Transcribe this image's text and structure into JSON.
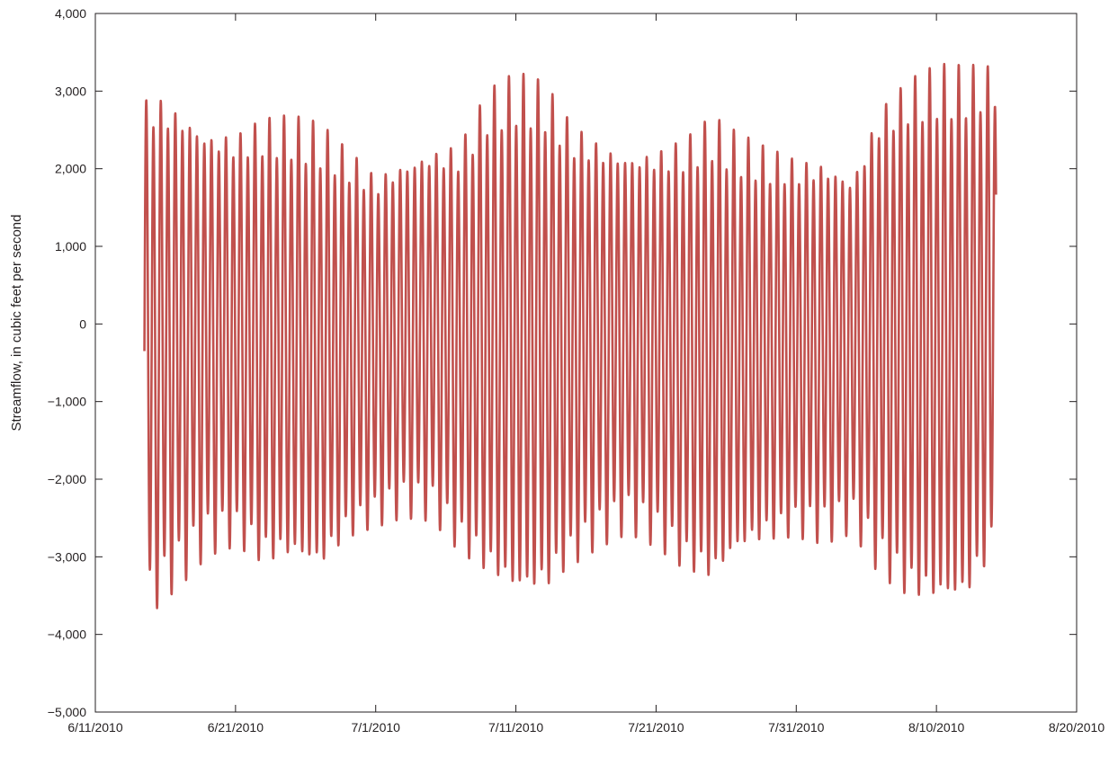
{
  "chart_data": {
    "type": "line",
    "title": "",
    "xlabel": "",
    "ylabel": "Streamflow, in cubic feet per second",
    "x_tick_labels": [
      "6/11/2010",
      "6/21/2010",
      "7/1/2010",
      "7/11/2010",
      "7/21/2010",
      "7/31/2010",
      "8/10/2010",
      "8/20/2010"
    ],
    "x_range": [
      "2010-06-11",
      "2010-08-20"
    ],
    "y_tick_labels": [
      "4,000",
      "3,000",
      "2,000",
      "1,000",
      "0",
      "−1,000",
      "−2,000",
      "−3,000",
      "−4,000",
      "−5,000"
    ],
    "ylim": [
      -5000,
      4000
    ],
    "grid": false,
    "legend": "none",
    "series_color": "#c1504d",
    "series": [
      {
        "start": "2010-06-14 12:00",
        "end": "2010-08-14 06:00",
        "tide_period_hours": 12.42,
        "envelope": [
          {
            "date": "2010-06-14",
            "high": 2800,
            "low": -3500
          },
          {
            "date": "2010-06-15",
            "high": 3100,
            "low": -3800
          },
          {
            "date": "2010-06-17",
            "high": 2900,
            "low": -3400
          },
          {
            "date": "2010-06-19",
            "high": 2600,
            "low": -3000
          },
          {
            "date": "2010-06-21",
            "high": 2550,
            "low": -2900
          },
          {
            "date": "2010-06-23",
            "high": 2700,
            "low": -3200
          },
          {
            "date": "2010-06-25",
            "high": 2700,
            "low": -3150
          },
          {
            "date": "2010-06-27",
            "high": 2600,
            "low": -3300
          },
          {
            "date": "2010-06-29",
            "high": 2300,
            "low": -2850
          },
          {
            "date": "2010-07-01",
            "high": 2000,
            "low": -2650
          },
          {
            "date": "2010-07-03",
            "high": 2200,
            "low": -2500
          },
          {
            "date": "2010-07-05",
            "high": 2350,
            "low": -2550
          },
          {
            "date": "2010-07-07",
            "high": 2400,
            "low": -3000
          },
          {
            "date": "2010-07-09",
            "high": 3050,
            "low": -3350
          },
          {
            "date": "2010-07-11",
            "high": 3250,
            "low": -3650
          },
          {
            "date": "2010-07-13",
            "high": 3150,
            "low": -3600
          },
          {
            "date": "2010-07-15",
            "high": 2650,
            "low": -3200
          },
          {
            "date": "2010-07-17",
            "high": 2450,
            "low": -2900
          },
          {
            "date": "2010-07-19",
            "high": 2300,
            "low": -2700
          },
          {
            "date": "2010-07-21",
            "high": 2350,
            "low": -2900
          },
          {
            "date": "2010-07-23",
            "high": 2450,
            "low": -3250
          },
          {
            "date": "2010-07-25",
            "high": 2700,
            "low": -3450
          },
          {
            "date": "2010-07-27",
            "high": 2450,
            "low": -3050
          },
          {
            "date": "2010-07-29",
            "high": 2300,
            "low": -2900
          },
          {
            "date": "2010-07-31",
            "high": 2200,
            "low": -2800
          },
          {
            "date": "2010-08-02",
            "high": 2200,
            "low": -2850
          },
          {
            "date": "2010-08-04",
            "high": 2000,
            "low": -2700
          },
          {
            "date": "2010-08-06",
            "high": 2900,
            "low": -3300
          },
          {
            "date": "2010-08-08",
            "high": 3200,
            "low": -3650
          },
          {
            "date": "2010-08-10",
            "high": 3350,
            "low": -3750
          },
          {
            "date": "2010-08-12",
            "high": 3350,
            "low": -3750
          },
          {
            "date": "2010-08-14",
            "high": 3380,
            "low": -3100
          }
        ]
      }
    ]
  }
}
